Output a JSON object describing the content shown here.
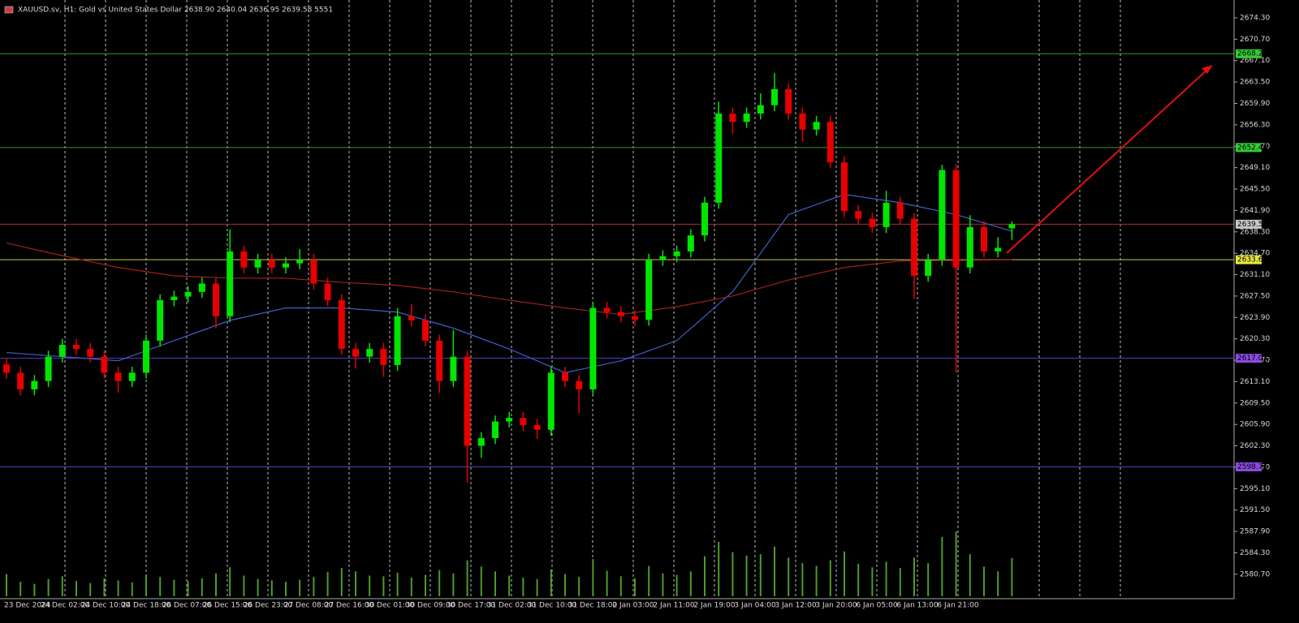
{
  "chart_data": {
    "type": "candlestick",
    "header": "XAUUSD.sv, H1:  Gold vs United States Dollar  2638.90 2640.04 2636.95 2639.58 5551",
    "ylim": [
      2577.0,
      2677.3
    ],
    "yticks": [
      {
        "value": 2580.7,
        "label": "2580.70"
      },
      {
        "value": 2584.3,
        "label": "2584.30"
      },
      {
        "value": 2587.9,
        "label": "2587.90"
      },
      {
        "value": 2591.5,
        "label": "2591.50"
      },
      {
        "value": 2595.1,
        "label": "2595.10"
      },
      {
        "value": 2598.7,
        "label": "2598.70"
      },
      {
        "value": 2602.3,
        "label": "2602.30"
      },
      {
        "value": 2605.9,
        "label": "2605.90"
      },
      {
        "value": 2609.5,
        "label": "2609.50"
      },
      {
        "value": 2613.1,
        "label": "2613.10"
      },
      {
        "value": 2616.7,
        "label": "2616.70"
      },
      {
        "value": 2620.3,
        "label": "2620.30"
      },
      {
        "value": 2623.9,
        "label": "2623.90"
      },
      {
        "value": 2627.5,
        "label": "2627.50"
      },
      {
        "value": 2631.1,
        "label": "2631.10"
      },
      {
        "value": 2634.7,
        "label": "2634.70"
      },
      {
        "value": 2638.3,
        "label": "2638.30"
      },
      {
        "value": 2641.9,
        "label": "2641.90"
      },
      {
        "value": 2645.5,
        "label": "2645.50"
      },
      {
        "value": 2649.1,
        "label": "2649.10"
      },
      {
        "value": 2652.7,
        "label": "2652.70"
      },
      {
        "value": 2656.3,
        "label": "2656.30"
      },
      {
        "value": 2659.9,
        "label": "2659.90"
      },
      {
        "value": 2663.5,
        "label": "2663.50"
      },
      {
        "value": 2667.1,
        "label": "2667.10"
      },
      {
        "value": 2670.7,
        "label": "2670.70"
      },
      {
        "value": 2674.3,
        "label": "2674.30"
      }
    ],
    "time_labels": [
      "23 Dec 2024",
      "24 Dec 02:00",
      "24 Dec 10:00",
      "24 Dec 18:00",
      "26 Dec 07:00",
      "26 Dec 15:00",
      "26 Dec 23:00",
      "27 Dec 08:00",
      "27 Dec 16:00",
      "30 Dec 01:00",
      "30 Dec 09:00",
      "30 Dec 17:00",
      "31 Dec 02:00",
      "31 Dec 10:00",
      "31 Dec 18:00",
      "2 Jan 03:00",
      "2 Jan 11:00",
      "2 Jan 19:00",
      "3 Jan 04:00",
      "3 Jan 12:00",
      "3 Jan 20:00",
      "6 Jan 05:00",
      "6 Jan 13:00",
      "6 Jan 21:00"
    ],
    "grid": true,
    "up_color": "#00e600",
    "down_color": "#e60000",
    "open": [
      2616.0,
      2614.6,
      2611.8,
      2613.2,
      2617.3,
      2619.3,
      2618.6,
      2617.3,
      2614.6,
      2613.2,
      2614.6,
      2620.0,
      2626.8,
      2627.4,
      2628.2,
      2629.6,
      2624.1,
      2635.0,
      2632.3,
      2633.6,
      2632.3,
      2633.0,
      2633.6,
      2629.6,
      2626.8,
      2618.6,
      2617.3,
      2618.6,
      2615.9,
      2624.1,
      2623.4,
      2620.0,
      2613.2,
      2617.3,
      2602.3,
      2603.6,
      2606.4,
      2607.0,
      2605.8,
      2605.0,
      2614.6,
      2613.2,
      2611.8,
      2625.5,
      2624.8,
      2624.1,
      2623.5,
      2633.6,
      2634.2,
      2635.0,
      2637.7,
      2643.2,
      2658.2,
      2656.8,
      2658.2,
      2659.6,
      2662.3,
      2658.2,
      2655.5,
      2656.8,
      2650.0,
      2641.8,
      2640.5,
      2639.1,
      2643.2,
      2640.5,
      2630.9,
      2633.6,
      2648.7,
      2632.3,
      2639.1,
      2635.0,
      2638.9
    ],
    "high": [
      2617.0,
      2615.6,
      2614.2,
      2618.3,
      2620.3,
      2620.3,
      2619.6,
      2618.3,
      2615.6,
      2615.6,
      2621.0,
      2627.8,
      2628.4,
      2629.2,
      2630.6,
      2630.6,
      2638.7,
      2636.0,
      2634.6,
      2634.6,
      2634.0,
      2635.4,
      2634.6,
      2630.6,
      2627.8,
      2619.6,
      2619.6,
      2619.6,
      2625.5,
      2626.1,
      2624.4,
      2621.0,
      2621.8,
      2618.3,
      2604.6,
      2607.4,
      2608.0,
      2608.0,
      2606.8,
      2615.6,
      2615.6,
      2614.2,
      2626.5,
      2626.5,
      2625.8,
      2625.1,
      2634.6,
      2635.2,
      2636.0,
      2638.7,
      2644.2,
      2660.2,
      2659.2,
      2659.2,
      2661.6,
      2665.0,
      2663.3,
      2659.2,
      2657.8,
      2657.8,
      2651.0,
      2642.8,
      2641.5,
      2645.2,
      2644.2,
      2641.5,
      2634.6,
      2649.6,
      2649.7,
      2641.1,
      2640.1,
      2637.4,
      2640.04
    ],
    "low": [
      2613.6,
      2610.8,
      2610.8,
      2612.2,
      2616.3,
      2617.6,
      2616.3,
      2613.6,
      2611.2,
      2612.2,
      2613.6,
      2619.0,
      2625.8,
      2626.4,
      2627.2,
      2622.1,
      2623.1,
      2631.3,
      2631.3,
      2631.3,
      2631.3,
      2632.0,
      2628.6,
      2625.8,
      2617.6,
      2615.3,
      2616.3,
      2613.9,
      2614.9,
      2622.4,
      2619.0,
      2611.2,
      2612.2,
      2596.1,
      2600.3,
      2602.6,
      2605.4,
      2604.8,
      2603.5,
      2604.0,
      2612.2,
      2607.8,
      2610.8,
      2623.8,
      2623.1,
      2622.5,
      2622.5,
      2632.6,
      2633.2,
      2634.0,
      2636.7,
      2642.2,
      2654.8,
      2655.8,
      2657.2,
      2658.6,
      2657.2,
      2653.5,
      2654.5,
      2649.0,
      2640.8,
      2639.5,
      2638.1,
      2638.1,
      2639.5,
      2627.0,
      2629.9,
      2632.6,
      2614.6,
      2631.3,
      2634.0,
      2634.0,
      2636.95
    ],
    "close": [
      2614.6,
      2611.8,
      2613.2,
      2617.3,
      2619.3,
      2618.6,
      2617.3,
      2614.6,
      2613.2,
      2614.6,
      2620.0,
      2626.8,
      2627.4,
      2628.2,
      2629.6,
      2624.1,
      2635.0,
      2632.3,
      2633.6,
      2632.3,
      2633.0,
      2633.6,
      2629.6,
      2626.8,
      2618.6,
      2617.3,
      2618.6,
      2615.9,
      2624.1,
      2623.4,
      2620.0,
      2613.2,
      2617.3,
      2602.3,
      2603.6,
      2606.4,
      2607.0,
      2605.8,
      2605.0,
      2614.6,
      2613.2,
      2611.8,
      2625.5,
      2624.8,
      2624.1,
      2623.5,
      2633.6,
      2634.2,
      2635.0,
      2637.7,
      2643.2,
      2658.2,
      2656.8,
      2658.2,
      2659.6,
      2662.3,
      2658.2,
      2655.5,
      2656.8,
      2650.0,
      2641.8,
      2640.5,
      2639.1,
      2643.2,
      2640.5,
      2630.9,
      2633.6,
      2648.7,
      2632.3,
      2639.1,
      2635.0,
      2635.6,
      2639.58
    ],
    "volume": [
      3200,
      2100,
      1800,
      2500,
      2900,
      2200,
      1900,
      2600,
      2300,
      2000,
      3100,
      2800,
      2400,
      2200,
      2600,
      3300,
      4200,
      3000,
      2500,
      2300,
      2100,
      2400,
      2800,
      3500,
      4100,
      3600,
      3000,
      2900,
      3400,
      2700,
      3100,
      3800,
      3300,
      5200,
      4300,
      3600,
      3000,
      2700,
      2500,
      3900,
      3200,
      2800,
      5400,
      3700,
      2900,
      2600,
      4400,
      3300,
      3100,
      3600,
      5800,
      7900,
      6400,
      5900,
      6100,
      7200,
      5600,
      4800,
      4400,
      5200,
      6500,
      4700,
      4200,
      5000,
      4100,
      5600,
      4800,
      8600,
      9400,
      6100,
      4300,
      3600,
      5551
    ],
    "volume_ylim": [
      0,
      20000
    ],
    "volume_color": "#4f9a2a",
    "lines": [
      {
        "color": "#4060c8",
        "x": [
          0,
          4,
          8,
          12,
          16,
          20,
          24,
          28,
          32,
          36,
          40,
          44,
          48,
          52,
          56,
          60,
          64,
          68,
          72
        ],
        "values": [
          2618.0,
          2617.3,
          2616.6,
          2620.0,
          2623.4,
          2625.5,
          2625.5,
          2624.8,
          2622.1,
          2618.6,
          2614.6,
          2616.6,
          2620.0,
          2628.2,
          2641.2,
          2644.6,
          2643.2,
          2641.2,
          2638.4
        ]
      },
      {
        "color": "#a02020",
        "x": [
          0,
          4,
          8,
          12,
          16,
          20,
          24,
          28,
          32,
          36,
          40,
          44,
          48,
          52,
          56,
          60,
          64,
          68,
          72
        ],
        "values": [
          2636.4,
          2634.3,
          2632.3,
          2630.9,
          2630.5,
          2630.5,
          2629.8,
          2629.3,
          2628.2,
          2626.8,
          2625.5,
          2624.4,
          2625.7,
          2627.5,
          2630.2,
          2632.3,
          2633.4,
          2633.5,
          2633.6
        ]
      }
    ],
    "levels": [
      {
        "value": 2668.26,
        "color": "#2f9a2f",
        "label_bg": "#33cc33"
      },
      {
        "value": 2652.48,
        "color": "#2f9a2f",
        "label_bg": "#33cc33"
      },
      {
        "value": 2639.58,
        "color": "#a83232",
        "label_bg": "#c8c8c8"
      },
      {
        "value": 2633.61,
        "color": "#c8c83c",
        "label_bg": "#e6e640"
      },
      {
        "value": 2617.03,
        "color": "#5a3cc8",
        "label_bg": "#8a4ae0"
      },
      {
        "value": 2598.76,
        "color": "#5a3cc8",
        "label_bg": "#8a4ae0"
      }
    ]
  }
}
